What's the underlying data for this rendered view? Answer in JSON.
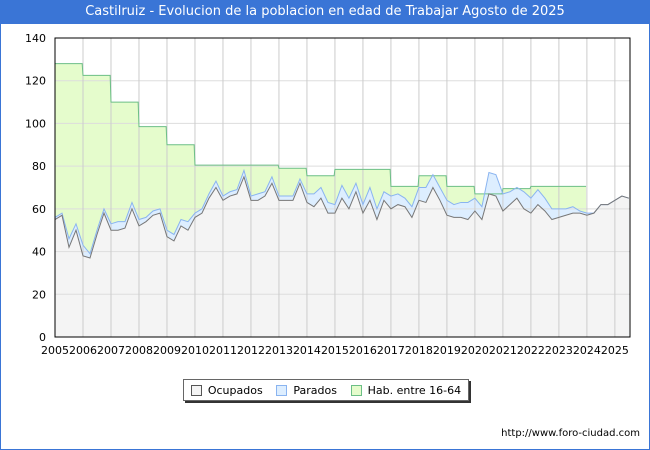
{
  "title": "Castilruiz - Evolucion de la poblacion en edad de Trabajar Agosto de 2025",
  "footer": "http://www.foro-ciudad.com",
  "colors": {
    "ocupados_fill": "#f4f4f4",
    "ocupados_line": "#777777",
    "parados_fill": "#ddeeff",
    "parados_line": "#8ab4f0",
    "hab_fill": "#e5fccc",
    "hab_line": "#6cbf86"
  },
  "chart_data": {
    "type": "area",
    "title": "Castilruiz - Evolucion de la poblacion en edad de Trabajar Agosto de 2025",
    "ylim": [
      0,
      140
    ],
    "yticks": [
      "0",
      "20",
      "40",
      "60",
      "80",
      "100",
      "120",
      "140"
    ],
    "xticks": [
      "2005",
      "2006",
      "2007",
      "2008",
      "2009",
      "2010",
      "2011",
      "2012",
      "2013",
      "2014",
      "2015",
      "2016",
      "2017",
      "2018",
      "2019",
      "2020",
      "2021",
      "2022",
      "2023",
      "2024",
      "2025"
    ],
    "grid": true,
    "legend": {
      "placement": "bottom",
      "entries": [
        "Ocupados",
        "Parados",
        "Hab. entre 16-64"
      ]
    },
    "hab_entre_16_64": {
      "years": [
        2005,
        2006,
        2007,
        2008,
        2009,
        2010,
        2011,
        2012,
        2013,
        2014,
        2015,
        2016,
        2017,
        2018,
        2019,
        2020,
        2021,
        2022,
        2023
      ],
      "values": [
        128,
        122.5,
        110,
        98.5,
        90,
        80.5,
        80.5,
        80.5,
        79,
        75.5,
        78.5,
        78.5,
        70.5,
        75.5,
        70.5,
        67,
        69.5,
        70.5,
        70.5
      ]
    },
    "x_start": 2005,
    "x_step": 0.25,
    "ocupados": [
      55,
      57,
      42,
      50,
      38,
      37,
      48,
      58,
      50,
      50,
      51,
      60,
      52,
      54,
      57,
      58,
      47,
      45,
      52,
      50,
      56,
      58,
      65,
      70,
      64,
      66,
      67,
      75,
      64,
      64,
      66,
      72,
      64,
      64,
      64,
      72,
      63,
      61,
      65,
      58,
      58,
      65,
      60,
      68,
      58,
      64,
      55,
      64,
      60,
      62,
      61,
      56,
      64,
      63,
      70,
      64,
      57,
      56,
      56,
      55,
      59,
      55,
      67,
      66,
      59,
      62,
      65,
      60,
      58,
      62,
      59,
      55,
      56,
      57,
      58,
      58,
      57,
      58,
      62,
      62,
      64,
      66,
      65
    ],
    "parados": [
      1,
      1,
      4,
      3,
      5,
      2,
      2,
      2,
      3,
      4,
      3,
      3,
      3,
      2,
      2,
      2,
      3,
      3,
      3,
      4,
      2,
      2,
      2,
      3,
      2,
      2,
      2,
      3,
      2,
      3,
      2,
      3,
      2,
      2,
      2,
      2,
      4,
      6,
      5,
      5,
      4,
      6,
      5,
      4,
      4,
      6,
      5,
      4,
      6,
      5,
      4,
      5,
      6,
      7,
      6,
      6,
      7,
      6,
      7,
      8,
      6,
      6,
      10,
      10,
      8,
      6,
      5,
      8,
      7,
      7,
      6,
      5,
      4,
      3,
      3,
      1,
      1,
      0,
      0,
      0,
      0,
      0,
      0
    ]
  }
}
